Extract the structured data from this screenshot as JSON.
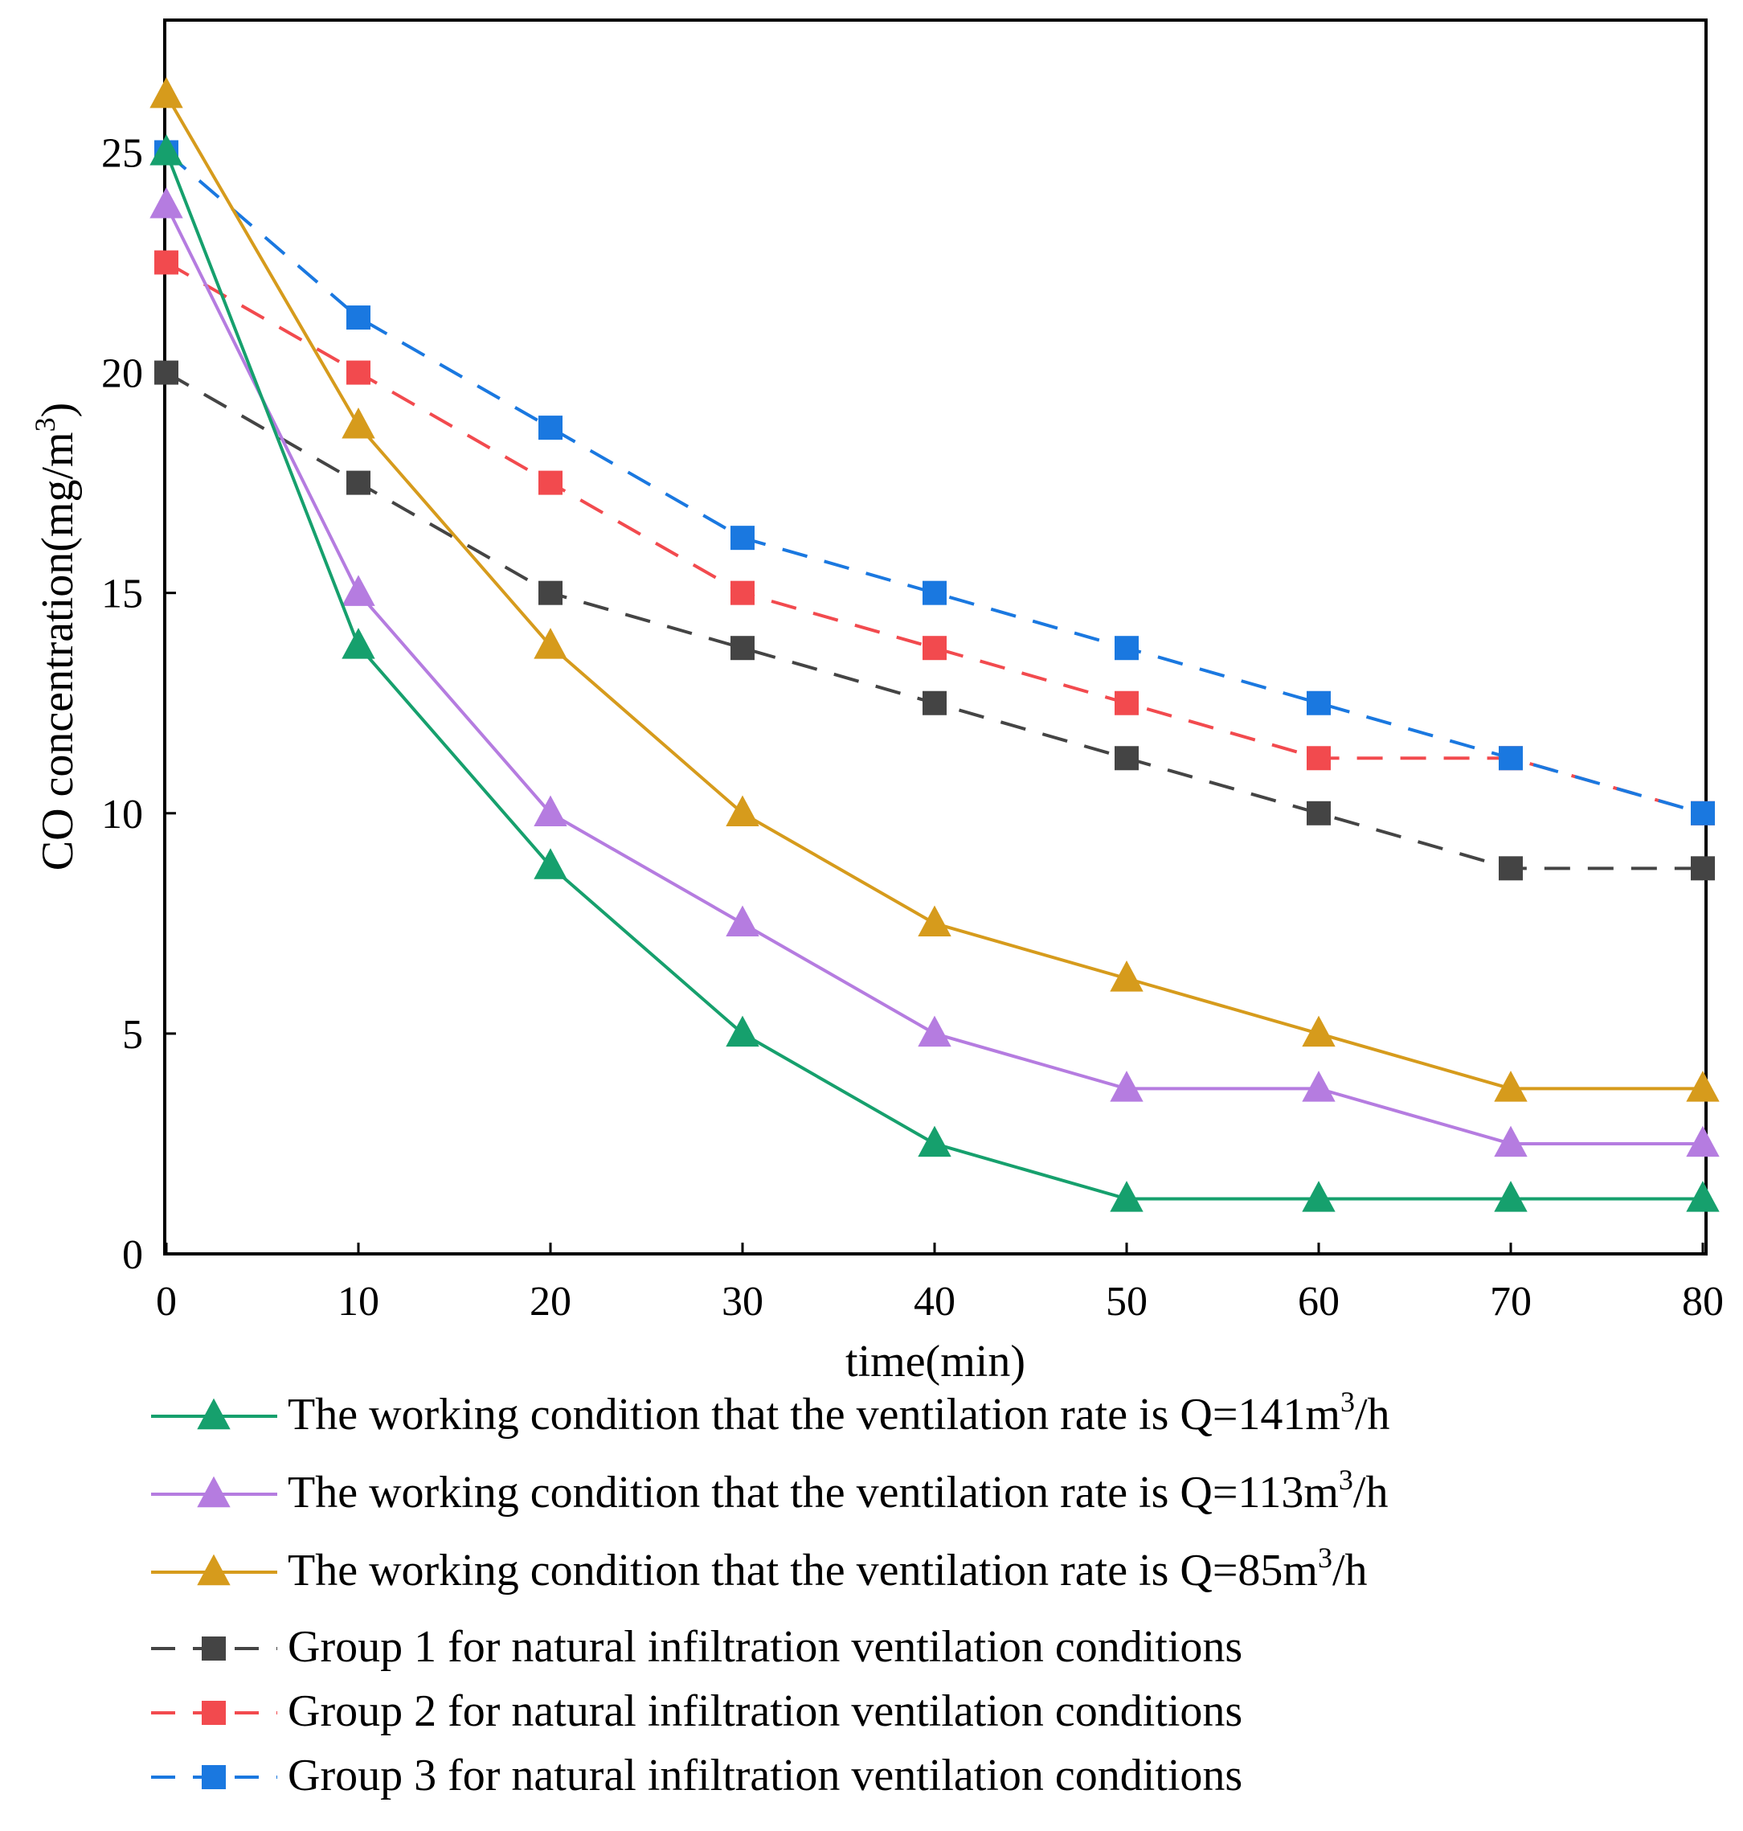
{
  "chart_data": {
    "type": "line",
    "xlabel": "time(min)",
    "ylabel": {
      "prefix": "CO concentration(mg/m",
      "sup": "3",
      "suffix": ")"
    },
    "xlim": [
      0,
      80
    ],
    "ylim": [
      0,
      28
    ],
    "x_ticks": [
      "0",
      "10",
      "20",
      "30",
      "40",
      "50",
      "60",
      "70",
      "80"
    ],
    "y_ticks": [
      "0",
      "5",
      "10",
      "15",
      "20",
      "25"
    ],
    "x": [
      0,
      10,
      20,
      30,
      40,
      50,
      60,
      70,
      80
    ],
    "grid": false,
    "legend_position": "bottom",
    "series": [
      {
        "id": "q141",
        "name": {
          "prefix": "The working condition that the ventilation rate is Q=141m",
          "sup": "3",
          "suffix": "/h"
        },
        "values": [
          25,
          13.8,
          8.8,
          5.0,
          2.5,
          1.25,
          1.25,
          1.25,
          1.25
        ],
        "color": "#16a06d",
        "marker": "triangle",
        "line_style": "solid"
      },
      {
        "id": "q113",
        "name": {
          "prefix": "The working condition that the ventilation rate is Q=113m",
          "sup": "3",
          "suffix": "/h"
        },
        "values": [
          23.8,
          15.0,
          10.0,
          7.5,
          5.0,
          3.75,
          3.75,
          2.5,
          2.5
        ],
        "color": "#b57ce0",
        "marker": "triangle",
        "line_style": "solid"
      },
      {
        "id": "q85",
        "name": {
          "prefix": "The working condition that the ventilation rate is Q=85m",
          "sup": "3",
          "suffix": "/h"
        },
        "values": [
          26.3,
          18.8,
          13.8,
          10.0,
          7.5,
          6.25,
          5.0,
          3.75,
          3.75
        ],
        "color": "#d69b1c",
        "marker": "triangle",
        "line_style": "solid"
      },
      {
        "id": "g1",
        "name": {
          "prefix": "Group 1 for natural infiltration ventilation conditions",
          "sup": "",
          "suffix": ""
        },
        "values": [
          20.0,
          17.5,
          15.0,
          13.75,
          12.5,
          11.25,
          10.0,
          8.75,
          8.75
        ],
        "color": "#444444",
        "marker": "square",
        "line_style": "dashed"
      },
      {
        "id": "g2",
        "name": {
          "prefix": "Group 2 for natural infiltration ventilation conditions",
          "sup": "",
          "suffix": ""
        },
        "values": [
          22.5,
          20.0,
          17.5,
          15.0,
          13.75,
          12.5,
          11.25,
          11.25,
          10.0
        ],
        "color": "#f24a4e",
        "marker": "square",
        "line_style": "dashed"
      },
      {
        "id": "g3",
        "name": {
          "prefix": "Group 3 for natural infiltration ventilation conditions",
          "sup": "",
          "suffix": ""
        },
        "values": [
          25.0,
          21.25,
          18.75,
          16.25,
          15.0,
          13.75,
          12.5,
          11.25,
          10.0
        ],
        "color": "#1a78e0",
        "marker": "square",
        "line_style": "dashed"
      }
    ]
  }
}
